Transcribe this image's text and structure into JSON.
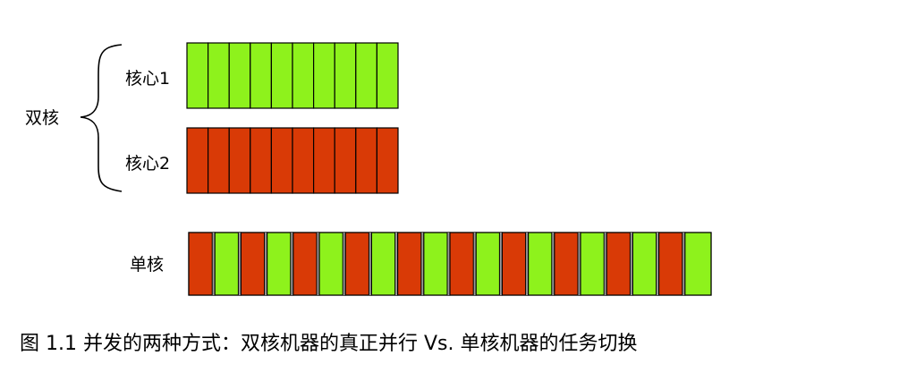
{
  "labels": {
    "dual_core": "双核",
    "core1": "核心1",
    "core2": "核心2",
    "single_core": "单核"
  },
  "caption": "图 1.1 并发的两种方式：双核机器的真正并行 Vs. 单核机器的任务切换",
  "core1_blocks": [
    "A",
    "A",
    "A",
    "A",
    "A",
    "A",
    "A",
    "A",
    "A",
    "A"
  ],
  "core2_blocks": [
    "B",
    "B",
    "B",
    "B",
    "B",
    "B",
    "B",
    "B",
    "B",
    "B"
  ],
  "single_core_blocks": [
    "B",
    "A",
    "B",
    "A",
    "B",
    "A",
    "B",
    "A",
    "B",
    "A",
    "B",
    "A",
    "B",
    "A",
    "B",
    "A",
    "B",
    "A",
    "B",
    "A"
  ],
  "colors": {
    "A": "#8ef21c",
    "B": "#d93a06",
    "switch_gap": "#9a9a9a",
    "outline": "#000000"
  }
}
